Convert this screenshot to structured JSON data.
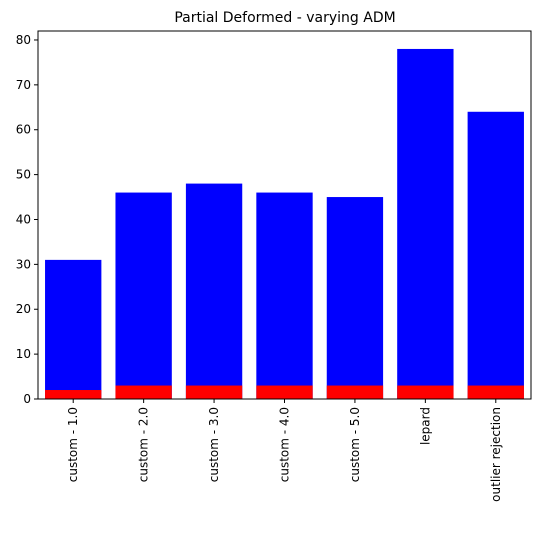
{
  "chart_data": {
    "type": "bar",
    "title": "Partial Deformed - varying ADM",
    "xlabel": "",
    "ylabel": "",
    "categories": [
      "custom - 1.0",
      "custom - 2.0",
      "custom - 3.0",
      "custom - 4.0",
      "custom - 5.0",
      "lepard",
      "outlier rejection"
    ],
    "series": [
      {
        "values": [
          31,
          46,
          48,
          46,
          45,
          78,
          64
        ],
        "color": "#0000ff"
      },
      {
        "values": [
          2,
          3,
          3,
          3,
          3,
          3,
          3
        ],
        "color": "#ff0000"
      }
    ],
    "ylim": [
      0,
      82
    ],
    "yticks": [
      0,
      10,
      20,
      30,
      40,
      50,
      60,
      70,
      80
    ],
    "grid": false,
    "legend": "none"
  }
}
